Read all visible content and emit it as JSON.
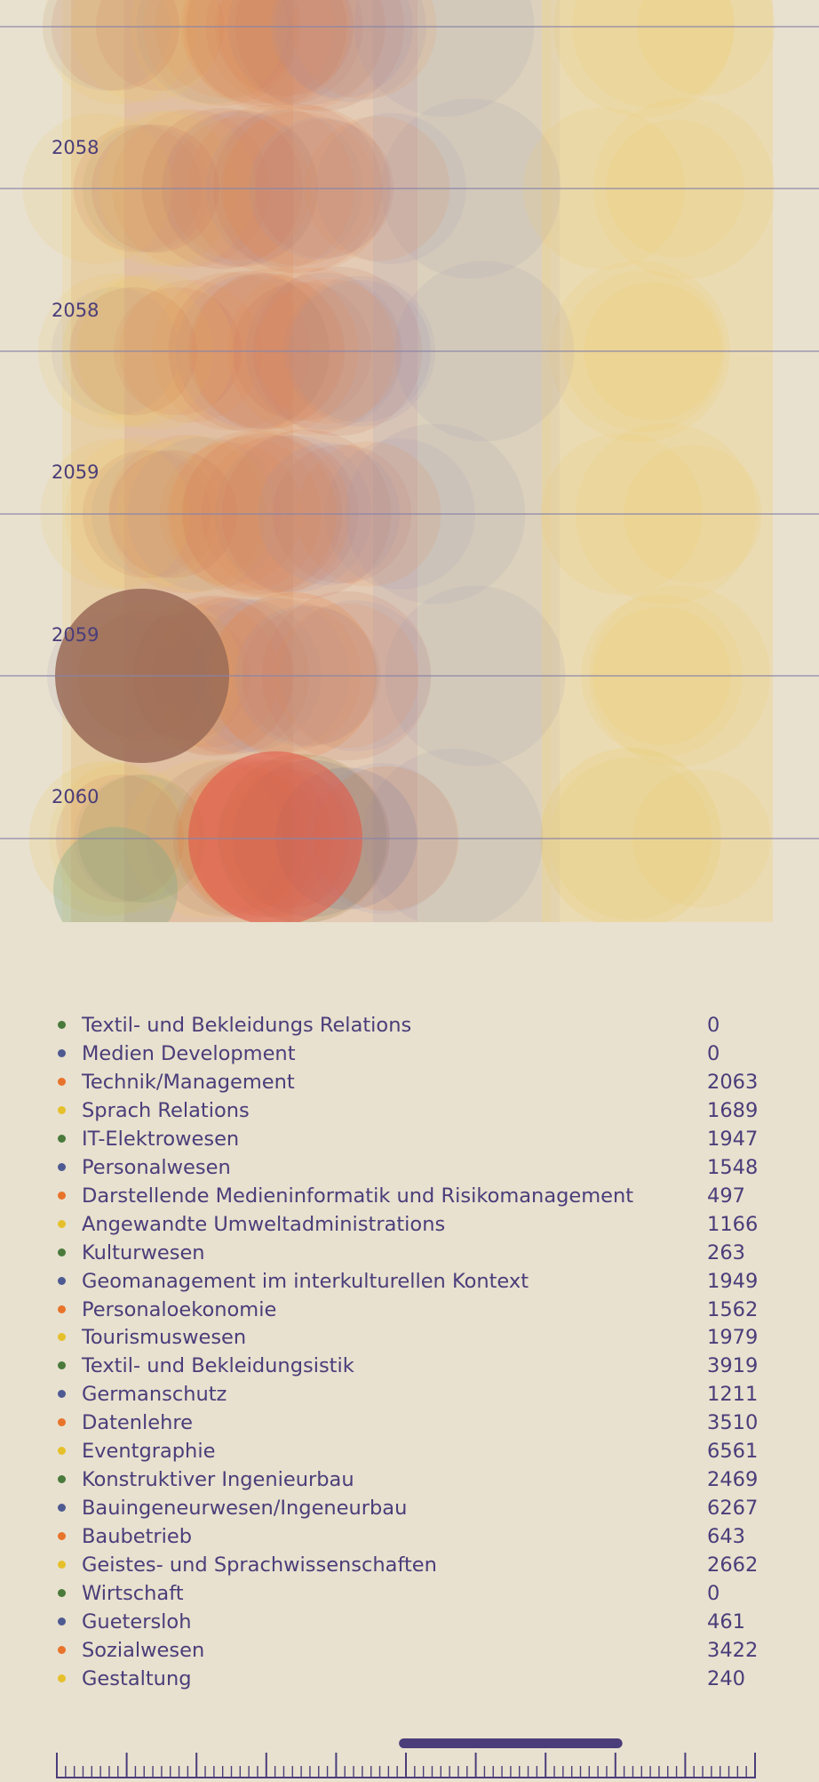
{
  "chart_data": {
    "type": "scatter",
    "title": "",
    "xlabel": "",
    "ylabel": "",
    "year_labels": [
      "2058",
      "2058",
      "2059",
      "2059",
      "2060"
    ],
    "series": [
      {
        "name": "Textil- und Bekleidungs Relations",
        "value": 0,
        "color": "#4a7a3c"
      },
      {
        "name": "Medien Development",
        "value": 0,
        "color": "#4e5a91"
      },
      {
        "name": "Technik/Management",
        "value": 2063,
        "color": "#e8732a"
      },
      {
        "name": "Sprach Relations",
        "value": 1689,
        "color": "#e6c02b"
      },
      {
        "name": "IT-Elektrowesen",
        "value": 1947,
        "color": "#4a7a3c"
      },
      {
        "name": "Personalwesen",
        "value": 1548,
        "color": "#4e5a91"
      },
      {
        "name": "Darstellende Medieninformatik und Risikomanagement",
        "value": 497,
        "color": "#e8732a"
      },
      {
        "name": "Angewandte Umweltadministrations",
        "value": 1166,
        "color": "#e6c02b"
      },
      {
        "name": "Kulturwesen",
        "value": 263,
        "color": "#4a7a3c"
      },
      {
        "name": "Geomanagement im interkulturellen Kontext",
        "value": 1949,
        "color": "#4e5a91"
      },
      {
        "name": "Personaloekonomie",
        "value": 1562,
        "color": "#e8732a"
      },
      {
        "name": "Tourismuswesen",
        "value": 1979,
        "color": "#e6c02b"
      },
      {
        "name": "Textil- und Bekleidungsistik",
        "value": 3919,
        "color": "#4a7a3c"
      },
      {
        "name": "Germanschutz",
        "value": 1211,
        "color": "#4e5a91"
      },
      {
        "name": "Datenlehre",
        "value": 3510,
        "color": "#e8732a"
      },
      {
        "name": "Eventgraphie",
        "value": 6561,
        "color": "#e6c02b"
      },
      {
        "name": "Konstruktiver Ingenieurbau",
        "value": 2469,
        "color": "#4a7a3c"
      },
      {
        "name": "Bauingeneurwesen/Ingeneurbau",
        "value": 6267,
        "color": "#4e5a91"
      },
      {
        "name": "Baubetrieb",
        "value": 643,
        "color": "#e8732a"
      },
      {
        "name": "Geistes- und Sprachwissenschaften",
        "value": 2662,
        "color": "#e6c02b"
      },
      {
        "name": "Wirtschaft",
        "value": 0,
        "color": "#4a7a3c"
      },
      {
        "name": "Guetersloh",
        "value": 461,
        "color": "#4e5a91"
      },
      {
        "name": "Sozialwesen",
        "value": 3422,
        "color": "#e8732a"
      },
      {
        "name": "Gestaltung",
        "value": 240,
        "color": "#e6c02b"
      }
    ],
    "grid": true,
    "legend": "bottom"
  },
  "timeline": {
    "accent_color": "#4a3d7a",
    "selected_range": [
      0.49,
      0.81
    ]
  }
}
